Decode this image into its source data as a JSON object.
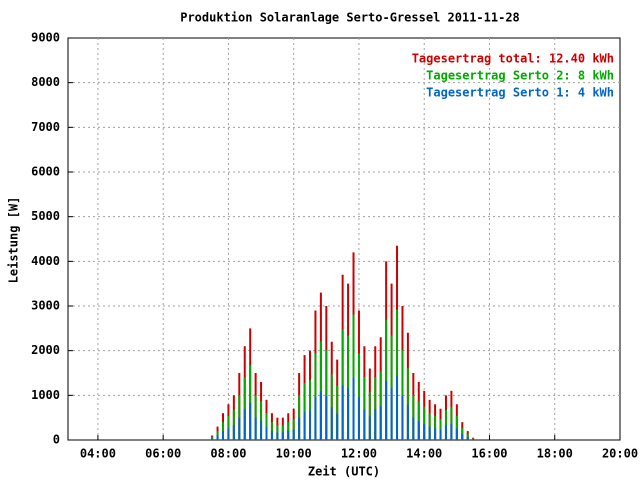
{
  "chart_data": {
    "type": "impulse",
    "title": "Produktion Solaranlage Serto-Gressel 2011-11-28",
    "x_label": "Zeit (UTC)",
    "y_label": "Leistung [W]",
    "xlim": [
      "03:05",
      "20:00"
    ],
    "xticks": [
      "04:00",
      "06:00",
      "08:00",
      "10:00",
      "12:00",
      "14:00",
      "16:00",
      "18:00",
      "20:00"
    ],
    "ylim": [
      0,
      9000
    ],
    "yticks": [
      0,
      1000,
      2000,
      3000,
      4000,
      5000,
      6000,
      7000,
      8000,
      9000
    ],
    "grid": true,
    "legend": "top-right",
    "x": [
      "07:30",
      "07:40",
      "07:50",
      "08:00",
      "08:10",
      "08:20",
      "08:30",
      "08:40",
      "08:50",
      "09:00",
      "09:10",
      "09:20",
      "09:30",
      "09:40",
      "09:50",
      "10:00",
      "10:10",
      "10:20",
      "10:30",
      "10:40",
      "10:50",
      "11:00",
      "11:10",
      "11:20",
      "11:30",
      "11:40",
      "11:50",
      "12:00",
      "12:10",
      "12:20",
      "12:30",
      "12:40",
      "12:50",
      "13:00",
      "13:10",
      "13:20",
      "13:30",
      "13:40",
      "13:50",
      "14:00",
      "14:10",
      "14:20",
      "14:30",
      "14:40",
      "14:50",
      "15:00",
      "15:10",
      "15:20",
      "15:30"
    ],
    "series": [
      {
        "name": "Tagesertrag total: 12.40 kWh",
        "color": "#cc0000",
        "values": [
          100,
          300,
          600,
          800,
          1000,
          1500,
          2100,
          2500,
          1500,
          1300,
          900,
          600,
          500,
          500,
          600,
          700,
          1500,
          1900,
          2000,
          2900,
          3300,
          3000,
          2200,
          1800,
          3700,
          3500,
          4200,
          2900,
          2100,
          1600,
          2100,
          2300,
          4000,
          3500,
          4350,
          3000,
          2400,
          1500,
          1300,
          1100,
          900,
          800,
          700,
          1000,
          1100,
          800,
          400,
          200,
          50
        ]
      },
      {
        "name": "Tagesertrag Serto 2: 8 kWh",
        "color": "#00aa00",
        "values": [
          70,
          200,
          400,
          540,
          670,
          1000,
          1410,
          1670,
          1000,
          870,
          600,
          400,
          330,
          330,
          400,
          470,
          1000,
          1270,
          1340,
          1940,
          2210,
          2010,
          1470,
          1210,
          2480,
          2340,
          2810,
          1940,
          1410,
          1070,
          1410,
          1540,
          2680,
          2340,
          2910,
          2010,
          1610,
          1000,
          870,
          740,
          600,
          540,
          470,
          670,
          740,
          540,
          270,
          130,
          30
        ]
      },
      {
        "name": "Tagesertrag Serto 1: 4 kWh",
        "color": "#0066cc",
        "values": [
          30,
          100,
          200,
          260,
          330,
          500,
          690,
          830,
          500,
          430,
          300,
          200,
          170,
          170,
          200,
          230,
          500,
          630,
          660,
          960,
          1090,
          990,
          730,
          590,
          1220,
          1160,
          1390,
          960,
          690,
          530,
          690,
          760,
          1320,
          1160,
          1440,
          990,
          790,
          500,
          430,
          360,
          300,
          260,
          230,
          330,
          360,
          260,
          130,
          70,
          20
        ]
      }
    ]
  }
}
